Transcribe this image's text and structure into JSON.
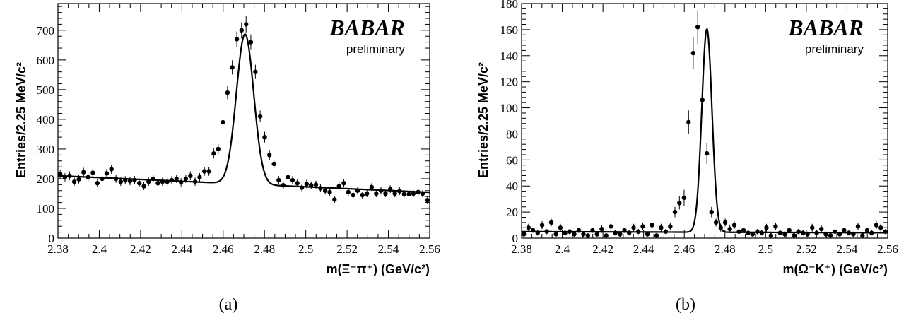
{
  "chart_data": [
    {
      "type": "scatter",
      "panel_label": "(a)",
      "brand": "BABAR",
      "brand_note": "preliminary",
      "ylabel": "Entries/2.25 MeV/c²",
      "xlabel": "m(Ξ⁻π⁺) (GeV/c²)",
      "xlim": [
        2.38,
        2.56
      ],
      "ylim": [
        0,
        790
      ],
      "x_ticks": [
        "2.38",
        "2.4",
        "2.42",
        "2.44",
        "2.46",
        "2.48",
        "2.5",
        "2.52",
        "2.54",
        "2.56"
      ],
      "y_ticks": [
        "0",
        "100",
        "200",
        "300",
        "400",
        "500",
        "600",
        "700"
      ],
      "grid": false,
      "fit": {
        "background": [
          210,
          -310,
          0
        ],
        "peak_mean": 2.4706,
        "peak_height": 505,
        "peak_sigma": 0.0042
      },
      "points_x": [
        2.3811,
        2.3834,
        2.3856,
        2.3879,
        2.3901,
        2.3924,
        2.3946,
        2.3969,
        2.3991,
        2.4014,
        2.4036,
        2.4059,
        2.4081,
        2.4104,
        2.4126,
        2.4149,
        2.4171,
        2.4194,
        2.4216,
        2.4239,
        2.4261,
        2.4284,
        2.4306,
        2.4329,
        2.4351,
        2.4374,
        2.4396,
        2.4419,
        2.4441,
        2.4464,
        2.4486,
        2.4509,
        2.4531,
        2.4554,
        2.4576,
        2.4599,
        2.4621,
        2.4644,
        2.4666,
        2.4689,
        2.4711,
        2.4734,
        2.4756,
        2.4779,
        2.4801,
        2.4824,
        2.4846,
        2.4869,
        2.4891,
        2.4914,
        2.4936,
        2.4959,
        2.4981,
        2.5004,
        2.5026,
        2.5049,
        2.5071,
        2.5094,
        2.5116,
        2.5139,
        2.5161,
        2.5184,
        2.5206,
        2.5229,
        2.5251,
        2.5274,
        2.5296,
        2.5319,
        2.5341,
        2.5364,
        2.5386,
        2.5409,
        2.5431,
        2.5454,
        2.5476,
        2.5499,
        2.5521,
        2.5544,
        2.5566,
        2.5589
      ],
      "points_y": [
        215,
        205,
        210,
        190,
        198,
        222,
        205,
        220,
        185,
        200,
        218,
        232,
        200,
        190,
        195,
        192,
        195,
        185,
        175,
        190,
        200,
        185,
        190,
        190,
        195,
        200,
        188,
        200,
        210,
        190,
        205,
        225,
        225,
        285,
        300,
        390,
        490,
        575,
        670,
        700,
        720,
        660,
        560,
        410,
        340,
        280,
        250,
        195,
        178,
        205,
        195,
        185,
        170,
        182,
        178,
        180,
        168,
        160,
        155,
        130,
        175,
        185,
        155,
        145,
        160,
        145,
        150,
        172,
        150,
        160,
        150,
        165,
        150,
        158,
        148,
        148,
        150,
        155,
        150,
        128
      ],
      "point_err": [
        15,
        14,
        15,
        14,
        14,
        15,
        14,
        15,
        14,
        14,
        15,
        15,
        14,
        14,
        14,
        14,
        14,
        14,
        13,
        14,
        14,
        14,
        14,
        14,
        14,
        14,
        14,
        14,
        15,
        14,
        14,
        15,
        15,
        17,
        17,
        20,
        22,
        24,
        26,
        27,
        27,
        26,
        24,
        20,
        18,
        17,
        16,
        14,
        13,
        14,
        14,
        14,
        13,
        14,
        13,
        13,
        13,
        13,
        12,
        11,
        13,
        14,
        12,
        12,
        13,
        12,
        12,
        13,
        12,
        13,
        12,
        13,
        12,
        13,
        12,
        12,
        12,
        12,
        12,
        11
      ]
    },
    {
      "type": "scatter",
      "panel_label": "(b)",
      "brand": "BABAR",
      "brand_note": "preliminary",
      "ylabel": "Entries/2.25 MeV/c²",
      "xlabel": "m(Ω⁻K⁺)  (GeV/c²)",
      "xlim": [
        2.38,
        2.56
      ],
      "ylim": [
        0,
        180
      ],
      "x_ticks": [
        "2.38",
        "2.4",
        "2.42",
        "2.44",
        "2.46",
        "2.48",
        "2.5",
        "2.52",
        "2.54",
        "2.56"
      ],
      "y_ticks": [
        "0",
        "20",
        "40",
        "60",
        "80",
        "100",
        "120",
        "140",
        "160",
        "180"
      ],
      "grid": false,
      "fit": {
        "background": [
          5,
          -5,
          0
        ],
        "peak_mean": 2.4711,
        "peak_height": 156,
        "peak_sigma": 0.0025
      },
      "points_x": [
        2.3811,
        2.3834,
        2.3856,
        2.3879,
        2.3901,
        2.3924,
        2.3946,
        2.3969,
        2.3991,
        2.4014,
        2.4036,
        2.4059,
        2.4081,
        2.4104,
        2.4126,
        2.4149,
        2.4171,
        2.4194,
        2.4216,
        2.4239,
        2.4261,
        2.4284,
        2.4306,
        2.4329,
        2.4351,
        2.4374,
        2.4396,
        2.4419,
        2.4441,
        2.4464,
        2.4486,
        2.4509,
        2.4531,
        2.4554,
        2.4576,
        2.4599,
        2.4621,
        2.4644,
        2.4666,
        2.4689,
        2.4711,
        2.4734,
        2.4756,
        2.4779,
        2.4801,
        2.4824,
        2.4846,
        2.4869,
        2.4891,
        2.4914,
        2.4936,
        2.4959,
        2.4981,
        2.5004,
        2.5026,
        2.5049,
        2.5071,
        2.5094,
        2.5116,
        2.5139,
        2.5161,
        2.5184,
        2.5206,
        2.5229,
        2.5251,
        2.5274,
        2.5296,
        2.5319,
        2.5341,
        2.5364,
        2.5386,
        2.5409,
        2.5431,
        2.5454,
        2.5476,
        2.5499,
        2.5521,
        2.5544,
        2.5566,
        2.5589
      ],
      "points_y": [
        3,
        8,
        6,
        4,
        10,
        5,
        12,
        3,
        8,
        4,
        5,
        3,
        6,
        3,
        2,
        6,
        3,
        7,
        2,
        9,
        4,
        3,
        6,
        4,
        8,
        5,
        9,
        3,
        10,
        2,
        8,
        5,
        9,
        20,
        27,
        31,
        89,
        142,
        162,
        106,
        65,
        20,
        12,
        8,
        12,
        7,
        10,
        5,
        6,
        4,
        3,
        5,
        4,
        8,
        2,
        9,
        4,
        3,
        6,
        2,
        5,
        4,
        3,
        8,
        4,
        7,
        3,
        2,
        5,
        3,
        6,
        4,
        3,
        9,
        2,
        6,
        4,
        10,
        8,
        5
      ],
      "point_err": [
        2,
        3,
        2,
        2,
        3,
        2,
        3,
        2,
        3,
        2,
        2,
        2,
        2,
        2,
        1,
        2,
        2,
        3,
        1,
        3,
        2,
        2,
        2,
        2,
        3,
        2,
        3,
        2,
        3,
        1,
        3,
        2,
        3,
        4,
        5,
        6,
        9,
        12,
        13,
        10,
        8,
        4,
        3,
        3,
        3,
        3,
        3,
        2,
        2,
        2,
        2,
        2,
        2,
        3,
        1,
        3,
        2,
        2,
        2,
        1,
        2,
        2,
        2,
        3,
        2,
        3,
        2,
        1,
        2,
        2,
        2,
        2,
        2,
        3,
        1,
        2,
        2,
        3,
        3,
        2
      ]
    }
  ]
}
